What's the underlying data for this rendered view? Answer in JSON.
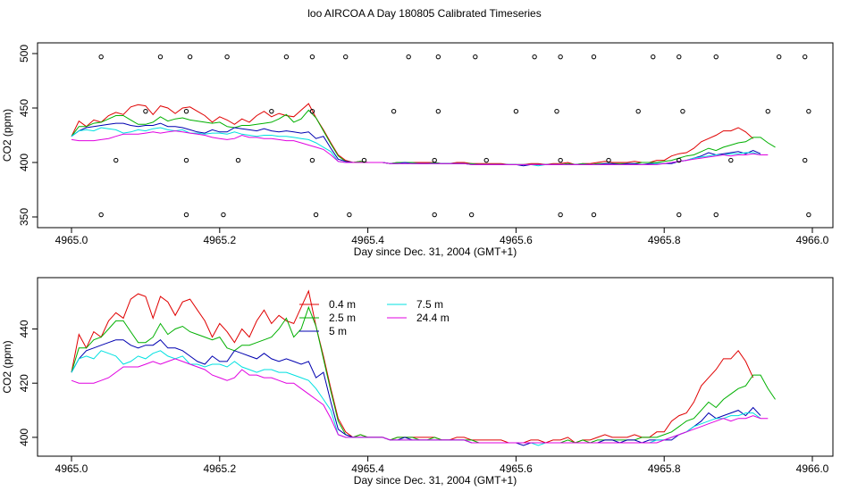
{
  "title": "loo AIRCOA A  Day 180805  Calibrated Timeseries",
  "colors": {
    "0.4 m": "#e00000",
    "2.5 m": "#00b000",
    "5 m": "#0000b0",
    "7.5 m": "#00e0e0",
    "24.4 m": "#e000e0"
  },
  "chart_data": [
    {
      "type": "line",
      "xlabel": "Day since Dec. 31, 2004 (GMT+1)",
      "ylabel": "CO2 (ppm)",
      "xlim": [
        4965.0,
        4966.0
      ],
      "ylim": [
        350,
        500
      ],
      "xticks": [
        "4965.0",
        "4965.2",
        "4965.4",
        "4965.6",
        "4965.8",
        "4966.0"
      ],
      "xtick_values": [
        4965.0,
        4965.2,
        4965.4,
        4965.6,
        4965.8,
        4966.0
      ],
      "yticks": [
        "350",
        "400",
        "450",
        "500"
      ],
      "ytick_values": [
        350,
        400,
        450,
        500
      ],
      "grid": false,
      "series_from_shared": true,
      "markers": {
        "name": "",
        "x": [
          4965.04,
          4965.12,
          4965.16,
          4965.21,
          4965.29,
          4965.325,
          4965.37,
          4965.455,
          4965.495,
          4965.545,
          4965.625,
          4965.66,
          4965.705,
          4965.785,
          4965.82,
          4965.87,
          4965.955,
          4965.99,
          4965.1,
          4965.155,
          4965.27,
          4965.325,
          4965.435,
          4965.495,
          4965.6,
          4965.655,
          4965.765,
          4965.825,
          4965.94,
          4965.995,
          4965.06,
          4965.155,
          4965.225,
          4965.325,
          4965.395,
          4965.49,
          4965.56,
          4965.66,
          4965.725,
          4965.82,
          4965.89,
          4965.99,
          4965.04,
          4965.155,
          4965.205,
          4965.33,
          4965.375,
          4965.49,
          4965.54,
          4965.66,
          4965.705,
          4965.82,
          4965.87,
          4965.995
        ],
        "y": [
          497,
          497,
          497,
          497,
          497,
          497,
          497,
          497,
          497,
          497,
          497,
          497,
          497,
          497,
          497,
          497,
          497,
          497,
          447,
          447,
          447,
          447,
          447,
          447,
          447,
          447,
          447,
          447,
          447,
          447,
          402,
          402,
          402,
          402,
          402,
          402,
          402,
          402,
          402,
          402,
          402,
          402,
          352,
          352,
          352,
          352,
          352,
          352,
          352,
          352,
          352,
          352,
          352,
          352
        ]
      }
    },
    {
      "type": "line",
      "xlabel": "Day since Dec. 31, 2004 (GMT+1)",
      "ylabel": "CO2 (ppm)",
      "xlim": [
        4965.0,
        4966.0
      ],
      "ylim": [
        397,
        455
      ],
      "xticks": [
        "4965.0",
        "4965.2",
        "4965.4",
        "4965.6",
        "4965.8",
        "4966.0"
      ],
      "xtick_values": [
        4965.0,
        4965.2,
        4965.4,
        4965.6,
        4965.8,
        4966.0
      ],
      "yticks": [
        "400",
        "420",
        "440"
      ],
      "ytick_values": [
        400,
        420,
        440
      ],
      "grid": false,
      "legend_placement": "top-center",
      "legend": [
        "0.4 m",
        "2.5 m",
        "5 m",
        "7.5 m",
        "24.4 m"
      ]
    }
  ],
  "shared_series": {
    "x_start": 4965.0,
    "x_step": 0.01,
    "series": [
      {
        "name": "0.4 m",
        "color": "#e00000",
        "values": [
          424,
          438,
          433,
          439,
          437,
          443,
          446,
          444,
          451,
          453,
          452,
          444,
          452,
          450,
          445,
          450,
          451,
          447,
          443,
          437,
          442,
          439,
          435,
          440,
          437,
          443,
          447,
          442,
          445,
          443,
          442,
          448,
          454,
          441,
          430,
          418,
          407,
          402,
          400,
          401,
          400,
          400,
          400,
          399,
          400,
          400,
          400,
          400,
          400,
          400,
          399,
          399,
          400,
          400,
          399,
          399,
          399,
          399,
          399,
          398,
          398,
          398,
          399,
          399,
          398,
          399,
          399,
          400,
          398,
          399,
          399,
          400,
          401,
          400,
          400,
          400,
          401,
          400,
          400,
          402,
          402,
          406,
          408,
          409,
          413,
          419,
          422,
          425,
          429,
          429,
          432,
          428,
          422
        ]
      },
      {
        "name": "2.5 m",
        "color": "#00b000",
        "values": [
          424,
          433,
          433,
          436,
          437,
          440,
          443,
          443,
          439,
          435,
          435,
          437,
          442,
          438,
          440,
          441,
          439,
          438,
          437,
          436,
          437,
          433,
          432,
          434,
          434,
          435,
          436,
          437,
          440,
          444,
          437,
          440,
          448,
          441,
          429,
          417,
          406,
          401,
          400,
          401,
          400,
          400,
          400,
          399,
          400,
          400,
          400,
          399,
          399,
          400,
          399,
          399,
          399,
          399,
          399,
          398,
          398,
          398,
          398,
          398,
          398,
          398,
          398,
          398,
          398,
          398,
          398,
          399,
          398,
          399,
          398,
          399,
          399,
          399,
          399,
          399,
          399,
          400,
          400,
          400,
          401,
          402,
          404,
          406,
          407,
          410,
          413,
          411,
          414,
          416,
          418,
          419,
          423,
          423,
          418,
          414
        ]
      },
      {
        "name": "5 m",
        "color": "#0000b0",
        "values": [
          424,
          429,
          432,
          433,
          434,
          435,
          436,
          436,
          434,
          433,
          434,
          434,
          436,
          433,
          433,
          432,
          430,
          428,
          427,
          430,
          428,
          428,
          432,
          431,
          430,
          429,
          431,
          429,
          428,
          429,
          428,
          427,
          428,
          422,
          424,
          413,
          403,
          401,
          400,
          400,
          400,
          400,
          400,
          399,
          399,
          400,
          399,
          399,
          399,
          399,
          399,
          399,
          399,
          399,
          398,
          398,
          398,
          398,
          398,
          398,
          398,
          397,
          398,
          398,
          398,
          398,
          398,
          398,
          398,
          398,
          398,
          398,
          399,
          399,
          398,
          399,
          399,
          398,
          399,
          399,
          399,
          399,
          401,
          402,
          404,
          406,
          409,
          407,
          408,
          409,
          410,
          408,
          411,
          408
        ]
      },
      {
        "name": "7.5 m",
        "color": "#00e0e0",
        "values": [
          424,
          429,
          430,
          429,
          432,
          431,
          430,
          427,
          428,
          430,
          429,
          431,
          432,
          430,
          429,
          430,
          427,
          427,
          426,
          427,
          427,
          426,
          428,
          426,
          425,
          424,
          425,
          425,
          424,
          424,
          423,
          422,
          421,
          418,
          414,
          410,
          401,
          400,
          400,
          400,
          400,
          400,
          400,
          399,
          399,
          399,
          399,
          399,
          399,
          399,
          399,
          399,
          399,
          399,
          398,
          398,
          398,
          398,
          398,
          398,
          398,
          398,
          398,
          397,
          398,
          398,
          398,
          398,
          398,
          398,
          398,
          398,
          398,
          398,
          398,
          398,
          398,
          398,
          398,
          399,
          399,
          400,
          401,
          402,
          404,
          405,
          406,
          407,
          407,
          408,
          408,
          409,
          409,
          407
        ]
      },
      {
        "name": "24.4 m",
        "color": "#e000e0",
        "values": [
          421,
          420,
          420,
          420,
          421,
          422,
          424,
          426,
          426,
          426,
          427,
          428,
          427,
          428,
          429,
          428,
          427,
          426,
          425,
          423,
          422,
          421,
          422,
          425,
          423,
          423,
          422,
          422,
          421,
          420,
          420,
          418,
          416,
          414,
          412,
          407,
          401,
          400,
          400,
          400,
          400,
          400,
          400,
          399,
          399,
          399,
          399,
          399,
          399,
          399,
          399,
          399,
          399,
          399,
          398,
          398,
          398,
          398,
          398,
          398,
          398,
          398,
          398,
          398,
          398,
          398,
          398,
          398,
          398,
          398,
          398,
          398,
          398,
          398,
          398,
          398,
          398,
          398,
          398,
          398,
          399,
          400,
          401,
          402,
          403,
          404,
          405,
          406,
          407,
          406,
          407,
          407,
          408,
          407,
          407
        ]
      }
    ]
  }
}
